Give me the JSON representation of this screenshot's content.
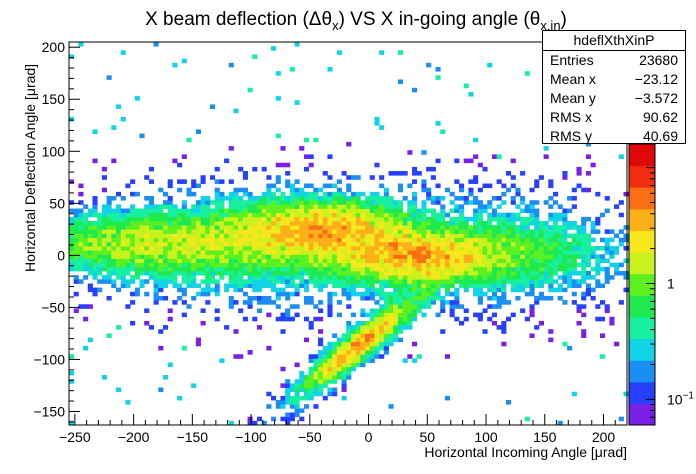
{
  "chart_data": {
    "type": "heatmap",
    "title": "X beam deflection (Δθ_x) VS X in-going angle (θ_x,in)",
    "xlabel": "Horizontal Incoming Angle [μrad]",
    "ylabel": "Horizontal Deflection Angle [μrad]",
    "xlim": [
      -255,
      220
    ],
    "ylim": [
      -163,
      205
    ],
    "xticks": [
      -250,
      -200,
      -150,
      -100,
      -50,
      0,
      50,
      100,
      150,
      200
    ],
    "yticks": [
      -150,
      -100,
      -50,
      0,
      50,
      100,
      150,
      200
    ],
    "grid": false,
    "colorbar": {
      "scale": "log",
      "min": 0.06,
      "max": 16,
      "tick_labels": [
        "1",
        "10^-1"
      ],
      "tick_values": [
        1,
        0.1
      ]
    },
    "color_scale": [
      "#7a1fe8",
      "#2740ff",
      "#1a8ef3",
      "#11d3e5",
      "#17f0a0",
      "#1eea50",
      "#5df020",
      "#c9f21c",
      "#f6e81c",
      "#fbb018",
      "#fa6e14",
      "#f22c10",
      "#e00808"
    ],
    "density_components": [
      {
        "region": "upper channeling band",
        "x_center": -42,
        "y_center": 25,
        "level": 8
      },
      {
        "region": "central band",
        "x_center": 38,
        "y_center": 0,
        "level": 9
      },
      {
        "region": "diagonal tail",
        "x_center": -10,
        "y_center": -88,
        "level": 9
      },
      {
        "region": "left band",
        "x_center": -205,
        "y_center": 12,
        "level": 3
      }
    ],
    "stats": {
      "name": "hdeflXthXinP",
      "entries_label": "Entries",
      "entries": "23680",
      "mean_x_label": "Mean x",
      "mean_x": "−23.12",
      "mean_y_label": "Mean y",
      "mean_y": "−3.572",
      "rms_x_label": "RMS x",
      "rms_x": "90.62",
      "rms_y_label": "RMS y",
      "rms_y": "40.69"
    }
  }
}
